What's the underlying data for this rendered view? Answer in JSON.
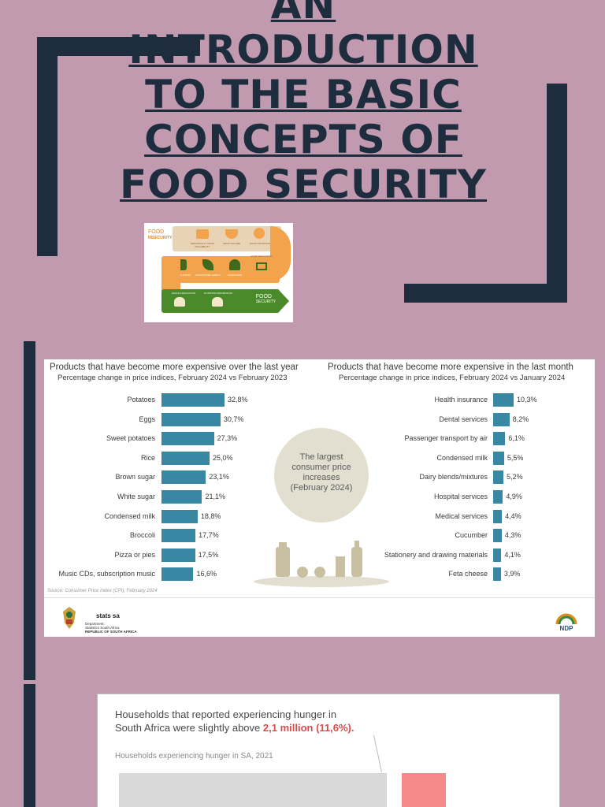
{
  "title_lines": [
    "AN",
    "INTRODUCTION",
    "TO THE BASIC",
    "CONCEPTS OF",
    "FOOD SECURITY"
  ],
  "infographic": {
    "logo_top": "FOOD",
    "logo_bottom": "INSECURITY",
    "steps_row1": [
      "ERRATICALLY FOOD AVAILABILITY",
      "CROP FAILURE",
      "POOR NUTRITION"
    ],
    "steps_row2": [
      "FOOD PRODUCTION",
      "NUTRITIONAL HABITS",
      "LANDSCAPE",
      "POOR EDUCATION"
    ],
    "steps_row3": [
      "HEALTH EDUCATION",
      "NUTRITION PROMOTION"
    ],
    "logo_end_top": "FOOD",
    "logo_end_bottom": "SECURITY",
    "colors": {
      "orange": "#f2a34b",
      "tan": "#e9d3b5",
      "green": "#4a8a2a"
    }
  },
  "chart_data": [
    {
      "type": "bar",
      "title": "Products that have become more expensive over the last year",
      "subtitle": "Percentage change in price indices, February 2024 vs February 2023",
      "categories": [
        "Potatoes",
        "Eggs",
        "Sweet potatoes",
        "Rice",
        "Brown sugar",
        "White sugar",
        "Condensed milk",
        "Broccoli",
        "Pizza or pies",
        "Music CDs, subscription music"
      ],
      "values": [
        32.8,
        30.7,
        27.3,
        25.0,
        23.1,
        21.1,
        18.8,
        17.7,
        17.5,
        16.6
      ],
      "labels": [
        "32,8%",
        "30,7%",
        "27,3%",
        "25,0%",
        "23,1%",
        "21,1%",
        "18,8%",
        "17,7%",
        "17,5%",
        "16,6%"
      ],
      "color": "#3888a3"
    },
    {
      "type": "bar",
      "title": "Products that have become more expensive in the last month",
      "subtitle": "Percentage change in price indices, February 2024 vs January 2024",
      "categories": [
        "Health insurance",
        "Dental services",
        "Passenger transport by air",
        "Condensed milk",
        "Dairy blends/mixtures",
        "Hospital services",
        "Medical services",
        "Cucumber",
        "Stationery and drawing materials",
        "Feta cheese"
      ],
      "values": [
        10.3,
        8.2,
        6.1,
        5.5,
        5.2,
        4.9,
        4.4,
        4.3,
        4.1,
        3.9
      ],
      "labels": [
        "10,3%",
        "8,2%",
        "6,1%",
        "5,5%",
        "5,2%",
        "4,9%",
        "4,4%",
        "4,3%",
        "4,1%",
        "3,9%"
      ],
      "color": "#3888a3"
    }
  ],
  "center_text": [
    "The largest",
    "consumer price",
    "increases",
    "(February 2024)"
  ],
  "source": "Source: Consumer Price Index (CPI), February 2024",
  "footer": {
    "brand": "stats sa",
    "dept_lines": [
      "Department:",
      "Statistics South Africa",
      "REPUBLIC OF SOUTH AFRICA"
    ],
    "ndp": "NDP"
  },
  "hunger": {
    "line1": "Households that reported experiencing hunger in",
    "line2_prefix": "South Africa were slightly above ",
    "line2_highlight": "2,1 million (11,6%).",
    "subtitle": "Households experiencing hunger in SA,  2021",
    "colors": {
      "highlight": "#d94b4b",
      "grey": "#d9d9d9",
      "red": "#f58a8a"
    }
  }
}
